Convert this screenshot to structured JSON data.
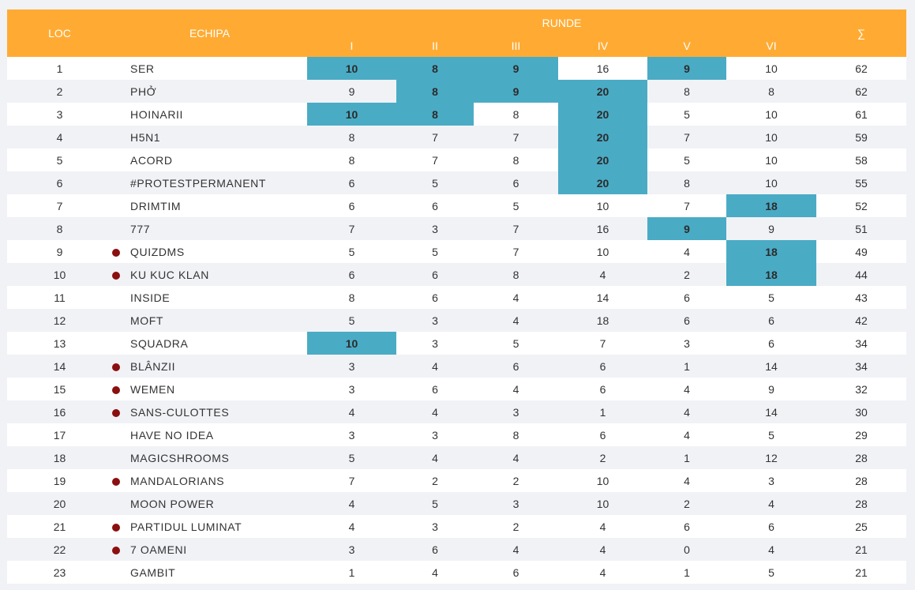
{
  "header": {
    "loc": "LOC",
    "echipa": "ECHIPA",
    "runde": "RUNDE",
    "rounds": [
      "I",
      "II",
      "III",
      "IV",
      "V",
      "VI"
    ],
    "sum": "∑"
  },
  "colors": {
    "header_bg": "#ffab33",
    "highlight": "#4aabc5",
    "dot": "#8b0f0f"
  },
  "rows": [
    {
      "loc": "1",
      "team": "SER",
      "dot": false,
      "scores": [
        "10",
        "8",
        "9",
        "16",
        "9",
        "10"
      ],
      "hl": [
        true,
        true,
        true,
        false,
        true,
        false
      ],
      "total": "62"
    },
    {
      "loc": "2",
      "team": "PHỞ",
      "dot": false,
      "scores": [
        "9",
        "8",
        "9",
        "20",
        "8",
        "8"
      ],
      "hl": [
        false,
        true,
        true,
        true,
        false,
        false
      ],
      "total": "62"
    },
    {
      "loc": "3",
      "team": "HOINARII",
      "dot": false,
      "scores": [
        "10",
        "8",
        "8",
        "20",
        "5",
        "10"
      ],
      "hl": [
        true,
        true,
        false,
        true,
        false,
        false
      ],
      "total": "61"
    },
    {
      "loc": "4",
      "team": "H5N1",
      "dot": false,
      "scores": [
        "8",
        "7",
        "7",
        "20",
        "7",
        "10"
      ],
      "hl": [
        false,
        false,
        false,
        true,
        false,
        false
      ],
      "total": "59"
    },
    {
      "loc": "5",
      "team": "ACORD",
      "dot": false,
      "scores": [
        "8",
        "7",
        "8",
        "20",
        "5",
        "10"
      ],
      "hl": [
        false,
        false,
        false,
        true,
        false,
        false
      ],
      "total": "58"
    },
    {
      "loc": "6",
      "team": "#PROTESTPERMANENT",
      "dot": false,
      "scores": [
        "6",
        "5",
        "6",
        "20",
        "8",
        "10"
      ],
      "hl": [
        false,
        false,
        false,
        true,
        false,
        false
      ],
      "total": "55"
    },
    {
      "loc": "7",
      "team": "DRIMTIM",
      "dot": false,
      "scores": [
        "6",
        "6",
        "5",
        "10",
        "7",
        "18"
      ],
      "hl": [
        false,
        false,
        false,
        false,
        false,
        true
      ],
      "total": "52"
    },
    {
      "loc": "8",
      "team": "777",
      "dot": false,
      "scores": [
        "7",
        "3",
        "7",
        "16",
        "9",
        "9"
      ],
      "hl": [
        false,
        false,
        false,
        false,
        true,
        false
      ],
      "total": "51"
    },
    {
      "loc": "9",
      "team": "QUIZDMS",
      "dot": true,
      "scores": [
        "5",
        "5",
        "7",
        "10",
        "4",
        "18"
      ],
      "hl": [
        false,
        false,
        false,
        false,
        false,
        true
      ],
      "total": "49"
    },
    {
      "loc": "10",
      "team": "KU KUC KLAN",
      "dot": true,
      "scores": [
        "6",
        "6",
        "8",
        "4",
        "2",
        "18"
      ],
      "hl": [
        false,
        false,
        false,
        false,
        false,
        true
      ],
      "total": "44"
    },
    {
      "loc": "11",
      "team": "INSIDE",
      "dot": false,
      "scores": [
        "8",
        "6",
        "4",
        "14",
        "6",
        "5"
      ],
      "hl": [
        false,
        false,
        false,
        false,
        false,
        false
      ],
      "total": "43"
    },
    {
      "loc": "12",
      "team": "MOFT",
      "dot": false,
      "scores": [
        "5",
        "3",
        "4",
        "18",
        "6",
        "6"
      ],
      "hl": [
        false,
        false,
        false,
        false,
        false,
        false
      ],
      "total": "42"
    },
    {
      "loc": "13",
      "team": "SQUADRA",
      "dot": false,
      "scores": [
        "10",
        "3",
        "5",
        "7",
        "3",
        "6"
      ],
      "hl": [
        true,
        false,
        false,
        false,
        false,
        false
      ],
      "total": "34"
    },
    {
      "loc": "14",
      "team": "BLÂNZII",
      "dot": true,
      "scores": [
        "3",
        "4",
        "6",
        "6",
        "1",
        "14"
      ],
      "hl": [
        false,
        false,
        false,
        false,
        false,
        false
      ],
      "total": "34"
    },
    {
      "loc": "15",
      "team": "WEMEN",
      "dot": true,
      "scores": [
        "3",
        "6",
        "4",
        "6",
        "4",
        "9"
      ],
      "hl": [
        false,
        false,
        false,
        false,
        false,
        false
      ],
      "total": "32"
    },
    {
      "loc": "16",
      "team": "SANS-CULOTTES",
      "dot": true,
      "scores": [
        "4",
        "4",
        "3",
        "1",
        "4",
        "14"
      ],
      "hl": [
        false,
        false,
        false,
        false,
        false,
        false
      ],
      "total": "30"
    },
    {
      "loc": "17",
      "team": "HAVE NO IDEA",
      "dot": false,
      "scores": [
        "3",
        "3",
        "8",
        "6",
        "4",
        "5"
      ],
      "hl": [
        false,
        false,
        false,
        false,
        false,
        false
      ],
      "total": "29"
    },
    {
      "loc": "18",
      "team": "MAGICSHROOMS",
      "dot": false,
      "scores": [
        "5",
        "4",
        "4",
        "2",
        "1",
        "12"
      ],
      "hl": [
        false,
        false,
        false,
        false,
        false,
        false
      ],
      "total": "28"
    },
    {
      "loc": "19",
      "team": "MANDALORIANS",
      "dot": true,
      "scores": [
        "7",
        "2",
        "2",
        "10",
        "4",
        "3"
      ],
      "hl": [
        false,
        false,
        false,
        false,
        false,
        false
      ],
      "total": "28"
    },
    {
      "loc": "20",
      "team": "MOON POWER",
      "dot": false,
      "scores": [
        "4",
        "5",
        "3",
        "10",
        "2",
        "4"
      ],
      "hl": [
        false,
        false,
        false,
        false,
        false,
        false
      ],
      "total": "28"
    },
    {
      "loc": "21",
      "team": "PARTIDUL LUMINAT",
      "dot": true,
      "scores": [
        "4",
        "3",
        "2",
        "4",
        "6",
        "6"
      ],
      "hl": [
        false,
        false,
        false,
        false,
        false,
        false
      ],
      "total": "25"
    },
    {
      "loc": "22",
      "team": "7 OAMENI",
      "dot": true,
      "scores": [
        "3",
        "6",
        "4",
        "4",
        "0",
        "4"
      ],
      "hl": [
        false,
        false,
        false,
        false,
        false,
        false
      ],
      "total": "21"
    },
    {
      "loc": "23",
      "team": "GAMBIT",
      "dot": false,
      "scores": [
        "1",
        "4",
        "6",
        "4",
        "1",
        "5"
      ],
      "hl": [
        false,
        false,
        false,
        false,
        false,
        false
      ],
      "total": "21"
    }
  ]
}
